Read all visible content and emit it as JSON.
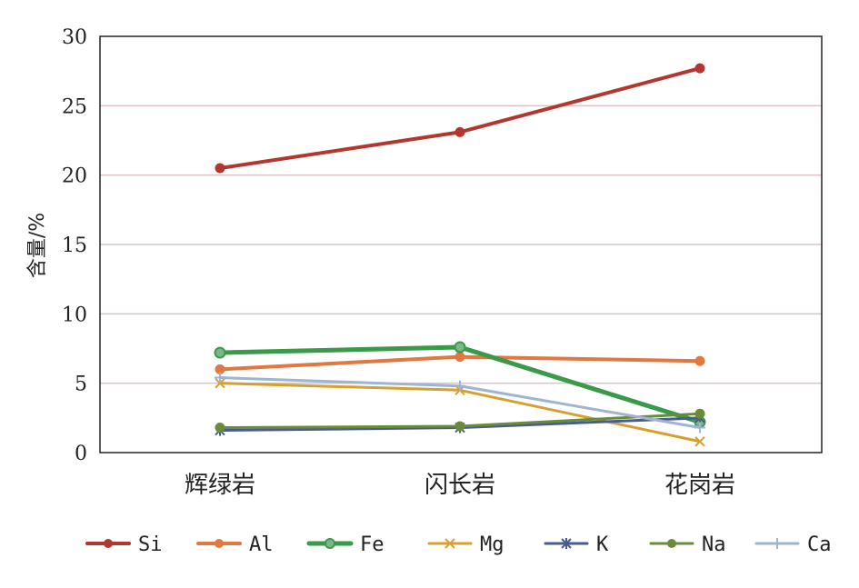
{
  "chart_data": {
    "type": "line",
    "categories": [
      "辉绿岩",
      "闪长岩",
      "花岗岩"
    ],
    "ylabel": "含量/%",
    "xlabel": "",
    "ylim": [
      0,
      30
    ],
    "yticks": [
      0,
      5,
      10,
      15,
      20,
      25,
      30
    ],
    "grid": "horizontal",
    "legend_position": "bottom",
    "series": [
      {
        "name": "Si",
        "values": [
          20.5,
          23.1,
          27.7
        ],
        "color": "#b3362f",
        "marker": "circle",
        "width": 4
      },
      {
        "name": "Al",
        "values": [
          6.0,
          6.9,
          6.6
        ],
        "color": "#e07840",
        "marker": "circle",
        "width": 4
      },
      {
        "name": "Fe",
        "values": [
          7.2,
          7.6,
          2.2
        ],
        "color": "#3a9a4a",
        "marker": "circle-ring",
        "width": 5
      },
      {
        "name": "Mg",
        "values": [
          5.0,
          4.5,
          0.8
        ],
        "color": "#d6a030",
        "marker": "x",
        "width": 3
      },
      {
        "name": "K",
        "values": [
          1.6,
          1.8,
          2.5
        ],
        "color": "#4a5a92",
        "marker": "star",
        "width": 3
      },
      {
        "name": "Na",
        "values": [
          1.8,
          1.9,
          2.8
        ],
        "color": "#6a8c3a",
        "marker": "circle",
        "width": 3
      },
      {
        "name": "Ca",
        "values": [
          5.4,
          4.8,
          1.8
        ],
        "color": "#9fb3d2",
        "marker": "plus",
        "width": 3
      }
    ]
  }
}
